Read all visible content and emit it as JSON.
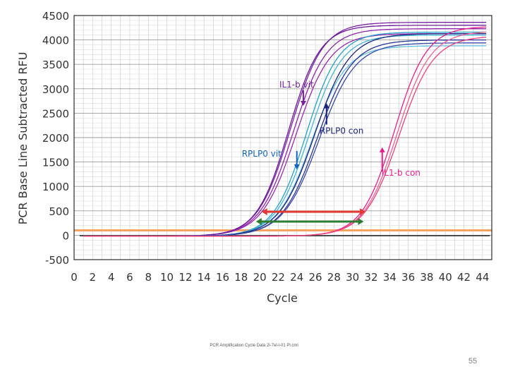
{
  "chart_data": {
    "type": "line",
    "title": "",
    "ylabel": "PCR Base Line Subtracted RFU",
    "xlabel": "Cycle",
    "xlim": [
      0,
      45
    ],
    "ylim": [
      -500,
      4500
    ],
    "x_ticks": [
      "0",
      "2",
      "4",
      "6",
      "8",
      "10",
      "12",
      "14",
      "16",
      "18",
      "20",
      "22",
      "24",
      "26",
      "28",
      "30",
      "32",
      "34",
      "36",
      "38",
      "40",
      "42",
      "44"
    ],
    "y_ticks": [
      "-500",
      "0",
      "500",
      "1000",
      "1500",
      "2000",
      "2500",
      "3000",
      "3500",
      "4000",
      "4500"
    ],
    "grid": true,
    "threshold": 100,
    "series": [
      {
        "color": "#7b1fa2",
        "plateau": 4380,
        "midpoint": 23.3,
        "slope": 1.75
      },
      {
        "color": "#8e24aa",
        "plateau": 4250,
        "midpoint": 23.6,
        "slope": 1.8
      },
      {
        "color": "#9c27b0",
        "plateau": 4150,
        "midpoint": 23.9,
        "slope": 1.85
      },
      {
        "color": "#6a1b9a",
        "plateau": 4320,
        "midpoint": 23.1,
        "slope": 1.7
      },
      {
        "color": "#1fa3c9",
        "plateau": 4180,
        "midpoint": 25.0,
        "slope": 1.75
      },
      {
        "color": "#3fb6d6",
        "plateau": 4120,
        "midpoint": 25.3,
        "slope": 1.8
      },
      {
        "color": "#5dc1dd",
        "plateau": 3900,
        "midpoint": 25.6,
        "slope": 1.85
      },
      {
        "color": "#1a237e",
        "plateau": 4150,
        "midpoint": 25.9,
        "slope": 1.9
      },
      {
        "color": "#283593",
        "plateau": 4020,
        "midpoint": 26.2,
        "slope": 1.9
      },
      {
        "color": "#3949ab",
        "plateau": 3960,
        "midpoint": 26.4,
        "slope": 1.95
      },
      {
        "color": "#e91e8c",
        "plateau": 4300,
        "midpoint": 34.5,
        "slope": 1.75
      },
      {
        "color": "#f06292",
        "plateau": 4200,
        "midpoint": 34.8,
        "slope": 1.8
      },
      {
        "color": "#ec407a",
        "plateau": 4100,
        "midpoint": 35.0,
        "slope": 1.85
      }
    ],
    "annotations": [
      {
        "label": "IL1-b vit",
        "x": 24.7,
        "y": 2650,
        "color": "#7b1fa2"
      },
      {
        "label": "RPLP0 con",
        "x": 27.2,
        "y": 2700,
        "color": "#1a237e"
      },
      {
        "label": "RPLP0 vit",
        "x": 24.0,
        "y": 1350,
        "color": "#1565c0"
      },
      {
        "label": "IL1-b con",
        "x": 33.2,
        "y": 1800,
        "color": "#e91e8c"
      }
    ],
    "ranges": [
      {
        "from": 20.2,
        "to": 31.4,
        "y": 480,
        "color": "#e53935"
      },
      {
        "from": 19.6,
        "to": 31.2,
        "y": 280,
        "color": "#2e7d32"
      }
    ]
  },
  "footer_text": "PCR Amplification Cycle Data 2l-7el-l-01 Pl.cml",
  "page_number": "55"
}
